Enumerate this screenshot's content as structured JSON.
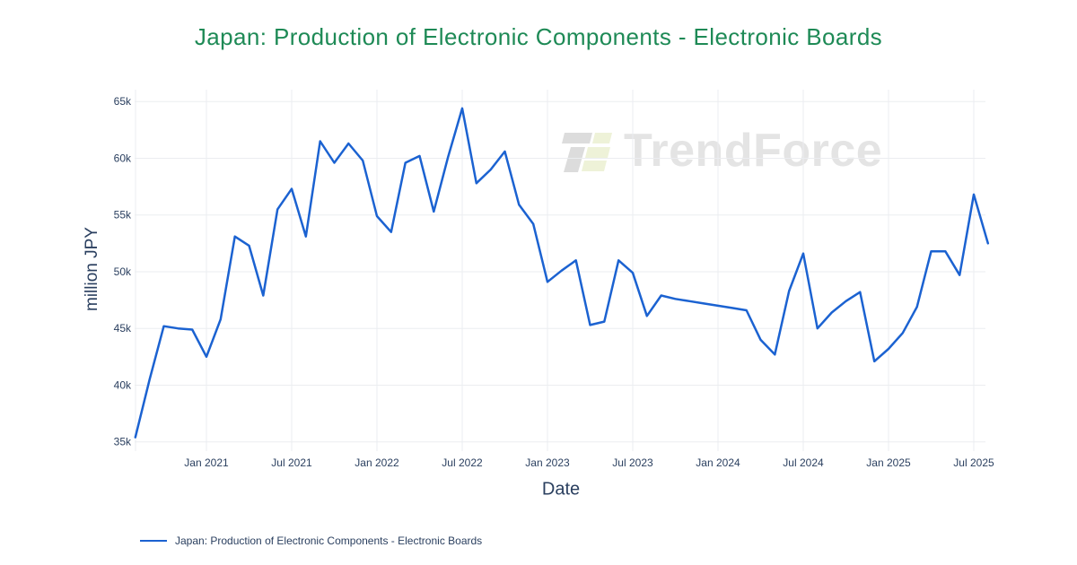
{
  "page": {
    "title": "Japan: Production of Electronic Components - Electronic Boards",
    "title_color": "#1e8a56"
  },
  "watermark": {
    "text": "TrendForce"
  },
  "legend": {
    "label": "Japan: Production of Electronic Components - Electronic Boards"
  },
  "chart_data": {
    "type": "line",
    "title": "Japan: Production of Electronic Components - Electronic Boards",
    "xlabel": "Date",
    "ylabel": "million JPY",
    "grid": true,
    "legend_position": "bottom-left",
    "line_color": "#1b62d1",
    "grid_color": "#ebedf0",
    "tick_color": "#2a3f5f",
    "ylim": [
      34200,
      65800
    ],
    "x": [
      "Aug 2020",
      "Sep 2020",
      "Oct 2020",
      "Nov 2020",
      "Dec 2020",
      "Jan 2021",
      "Feb 2021",
      "Mar 2021",
      "Apr 2021",
      "May 2021",
      "Jun 2021",
      "Jul 2021",
      "Aug 2021",
      "Sep 2021",
      "Oct 2021",
      "Nov 2021",
      "Dec 2021",
      "Jan 2022",
      "Feb 2022",
      "Mar 2022",
      "Apr 2022",
      "May 2022",
      "Jun 2022",
      "Jul 2022",
      "Aug 2022",
      "Sep 2022",
      "Oct 2022",
      "Nov 2022",
      "Dec 2022",
      "Jan 2023",
      "Feb 2023",
      "Mar 2023",
      "Apr 2023",
      "May 2023",
      "Jun 2023",
      "Jul 2023",
      "Aug 2023",
      "Sep 2023",
      "Oct 2023",
      "Nov 2023",
      "Dec 2023",
      "Jan 2024",
      "Feb 2024",
      "Mar 2024",
      "Apr 2024",
      "May 2024",
      "Jun 2024",
      "Jul 2024",
      "Aug 2024",
      "Sep 2024",
      "Oct 2024",
      "Nov 2024",
      "Dec 2024",
      "Jan 2025",
      "Feb 2025",
      "Mar 2025",
      "Apr 2025",
      "May 2025",
      "Jun 2025",
      "Jul 2025",
      "Aug 2025"
    ],
    "series": [
      {
        "name": "Japan: Production of Electronic Components - Electronic Boards",
        "values": [
          35400,
          40500,
          45200,
          45000,
          44900,
          42500,
          45800,
          53100,
          52300,
          47900,
          55500,
          57300,
          53100,
          61500,
          59600,
          61300,
          59800,
          54900,
          53500,
          59600,
          60200,
          55300,
          60100,
          64400,
          57800,
          59000,
          60600,
          55900,
          54200,
          49100,
          50100,
          51000,
          45300,
          45600,
          51000,
          49900,
          46100,
          47900,
          47600,
          47400,
          47200,
          47000,
          46800,
          46600,
          44000,
          42700,
          48300,
          51600,
          45000,
          46400,
          47400,
          48200,
          42100,
          43200,
          44600,
          46900,
          51800,
          51800,
          49700,
          56800,
          52500
        ]
      }
    ],
    "y_ticks": [
      {
        "label": "35k",
        "value": 35000
      },
      {
        "label": "40k",
        "value": 40000
      },
      {
        "label": "45k",
        "value": 45000
      },
      {
        "label": "50k",
        "value": 50000
      },
      {
        "label": "55k",
        "value": 55000
      },
      {
        "label": "60k",
        "value": 60000
      },
      {
        "label": "65k",
        "value": 65000
      }
    ],
    "x_ticks": [
      {
        "label": "Jan 2021",
        "index": 5
      },
      {
        "label": "Jul 2021",
        "index": 11
      },
      {
        "label": "Jan 2022",
        "index": 17
      },
      {
        "label": "Jul 2022",
        "index": 23
      },
      {
        "label": "Jan 2023",
        "index": 29
      },
      {
        "label": "Jul 2023",
        "index": 35
      },
      {
        "label": "Jan 2024",
        "index": 41
      },
      {
        "label": "Jul 2024",
        "index": 47
      },
      {
        "label": "Jan 2025",
        "index": 53
      },
      {
        "label": "Jul 2025",
        "index": 59
      }
    ]
  }
}
